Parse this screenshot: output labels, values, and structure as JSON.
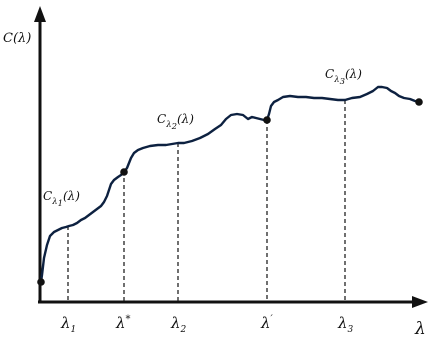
{
  "axes": {
    "y_label": {
      "main": "C(λ)"
    },
    "x_label": {
      "main": "λ"
    }
  },
  "curve_labels": [
    {
      "base": "C",
      "sub1": "λ",
      "sub2": "1",
      "tail": "(λ)"
    },
    {
      "base": "C",
      "sub1": "λ",
      "sub2": "2",
      "tail": "(λ)"
    },
    {
      "base": "C",
      "sub1": "λ",
      "sub2": "3",
      "tail": "(λ)"
    }
  ],
  "tick_labels": [
    {
      "main": "λ",
      "sub": "1",
      "sup": ""
    },
    {
      "main": "λ",
      "sub": "",
      "sup": "*"
    },
    {
      "main": "λ",
      "sub": "2",
      "sup": ""
    },
    {
      "main": "λ",
      "sub": "",
      "sup": "′"
    },
    {
      "main": "λ",
      "sub": "3",
      "sup": ""
    }
  ],
  "breakpoints": [
    {
      "name": "start"
    },
    {
      "name": "lambda-star"
    },
    {
      "name": "lambda-prime"
    },
    {
      "name": "end"
    }
  ]
}
